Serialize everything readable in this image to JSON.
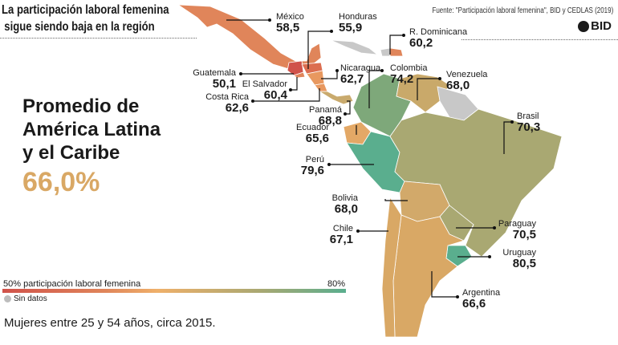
{
  "title": {
    "line1": "La participación laboral femenina",
    "line2": "sigue siendo baja en la región"
  },
  "source": "Fuente: \"Participación laboral femenina\", BID y CEDLAS (2019)",
  "logo_text": "BID",
  "average": {
    "line1": "Promedio de",
    "line2": "América Latina",
    "line3": "y el Caribe",
    "value": "66,0%"
  },
  "countries": {
    "mexico": {
      "name": "México",
      "value": "58,5",
      "color": "#e0855a"
    },
    "honduras": {
      "name": "Honduras",
      "value": "55,9",
      "color": "#dc6e50"
    },
    "rdominicana": {
      "name": "R. Dominicana",
      "value": "60,2",
      "color": "#e0855a"
    },
    "guatemala": {
      "name": "Guatemala",
      "value": "50,1",
      "color": "#d0524a"
    },
    "elsalvador": {
      "name": "El Salvador",
      "value": "60,4",
      "color": "#e0855a"
    },
    "costarica": {
      "name": "Costa Rica",
      "value": "62,6",
      "color": "#e8985f"
    },
    "nicaragua": {
      "name": "Nicaragua",
      "value": "62,7",
      "color": "#e8985f"
    },
    "panama": {
      "name": "Panamá",
      "value": "68,8",
      "color": "#c9aa6d"
    },
    "colombia": {
      "name": "Colombia",
      "value": "74,2",
      "color": "#7ea87a"
    },
    "venezuela": {
      "name": "Venezuela",
      "value": "68,0",
      "color": "#c9a96a"
    },
    "brasil": {
      "name": "Brasil",
      "value": "70,3",
      "color": "#a9a872"
    },
    "ecuador": {
      "name": "Ecuador",
      "value": "65,6",
      "color": "#e3a866"
    },
    "peru": {
      "name": "Perú",
      "value": "79,6",
      "color": "#5aae8e"
    },
    "bolivia": {
      "name": "Bolivia",
      "value": "68,0",
      "color": "#d2a96a"
    },
    "chile": {
      "name": "Chile",
      "value": "67,1",
      "color": "#d9a865"
    },
    "paraguay": {
      "name": "Paraguay",
      "value": "70,5",
      "color": "#a9a872"
    },
    "uruguay": {
      "name": "Uruguay",
      "value": "80,5",
      "color": "#5aae8e"
    },
    "argentina": {
      "name": "Argentina",
      "value": "66,6",
      "color": "#d9a865"
    }
  },
  "no_data_color": "#c8c8c8",
  "legend": {
    "min_label": "50% participación laboral femenina",
    "max_label": "80%",
    "no_data": "Sin datos"
  },
  "note": "Mujeres entre 25 y 54 años, circa 2015."
}
